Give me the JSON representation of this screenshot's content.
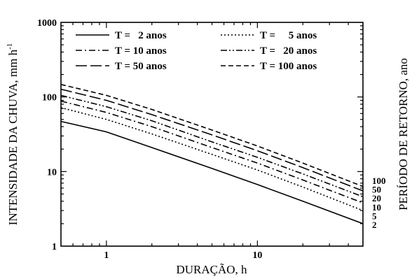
{
  "chart_data": {
    "type": "line",
    "xlabel": "DURAÇÃO, h",
    "ylabel": "INTENSIDADE DA CHUVA, mm h",
    "ylabel_superscript": "-1",
    "right_label": "PERÍODO DE RETORNO, ano",
    "x_scale": "log",
    "y_scale": "log",
    "xlim": [
      0.5,
      50
    ],
    "ylim": [
      1,
      1000
    ],
    "x_ticks": [
      1,
      10
    ],
    "x_tick_labels": [
      "1",
      "10"
    ],
    "y_ticks": [
      1,
      10,
      100,
      1000
    ],
    "y_tick_labels": [
      "1",
      "10",
      "100",
      "1000"
    ],
    "grid": false,
    "legend_position": "top-left",
    "series": [
      {
        "name": "T =   2 anos",
        "return_period_label": "2",
        "dash": "solid",
        "points": [
          [
            0.5,
            47
          ],
          [
            1,
            34
          ],
          [
            2,
            21
          ],
          [
            5,
            11
          ],
          [
            10,
            6.7
          ],
          [
            20,
            4.0
          ],
          [
            50,
            2.0
          ]
        ]
      },
      {
        "name": "T =     5 anos",
        "return_period_label": "5",
        "dash": "dotted",
        "points": [
          [
            0.5,
            72
          ],
          [
            1,
            50
          ],
          [
            2,
            32
          ],
          [
            5,
            17
          ],
          [
            10,
            10.5
          ],
          [
            20,
            6.2
          ],
          [
            50,
            3.0
          ]
        ]
      },
      {
        "name": "T = 10 anos",
        "return_period_label": "10",
        "dash": "dashdot",
        "points": [
          [
            0.5,
            88
          ],
          [
            1,
            62
          ],
          [
            2,
            40
          ],
          [
            5,
            21
          ],
          [
            10,
            13
          ],
          [
            20,
            7.7
          ],
          [
            50,
            3.8
          ]
        ]
      },
      {
        "name": "T =   20 anos",
        "return_period_label": "20",
        "dash": "dashdotdot",
        "points": [
          [
            0.5,
            105
          ],
          [
            1,
            74
          ],
          [
            2,
            48
          ],
          [
            5,
            25
          ],
          [
            10,
            15.5
          ],
          [
            20,
            9.3
          ],
          [
            50,
            4.6
          ]
        ]
      },
      {
        "name": "T = 50 anos",
        "return_period_label": "50",
        "dash": "longdash",
        "points": [
          [
            0.5,
            127
          ],
          [
            1,
            90
          ],
          [
            2,
            58
          ],
          [
            5,
            31
          ],
          [
            10,
            19
          ],
          [
            20,
            11.3
          ],
          [
            50,
            5.5
          ]
        ]
      },
      {
        "name": "T = 100 anos",
        "return_period_label": "100",
        "dash": "dashed",
        "points": [
          [
            0.5,
            147
          ],
          [
            1,
            105
          ],
          [
            2,
            68
          ],
          [
            5,
            36
          ],
          [
            10,
            22
          ],
          [
            20,
            13
          ],
          [
            50,
            6.3
          ]
        ]
      }
    ]
  }
}
